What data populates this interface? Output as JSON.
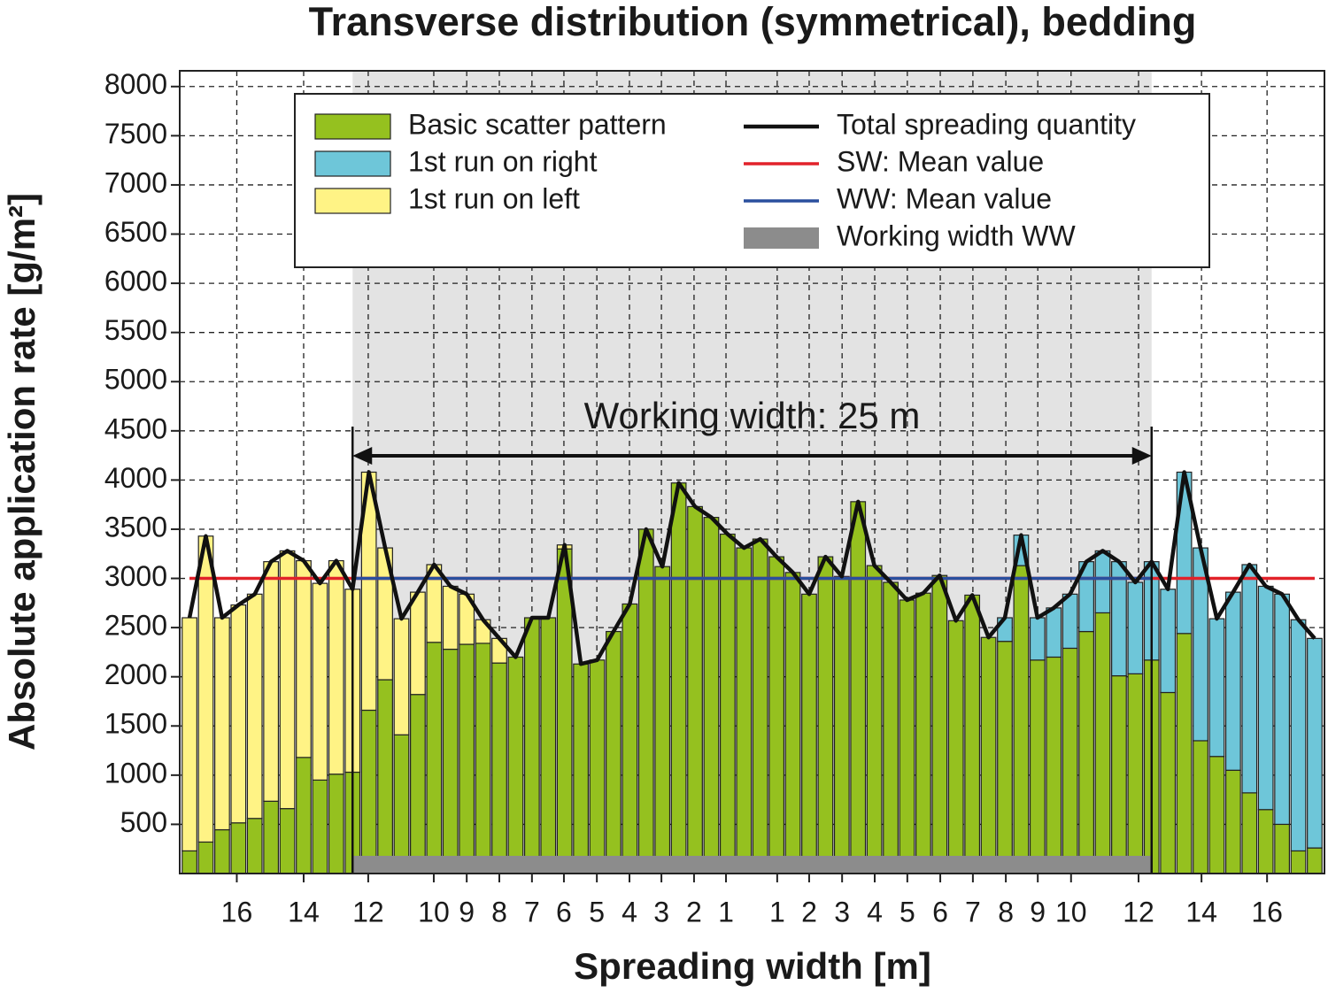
{
  "chart_data": {
    "type": "bar",
    "title": "Transverse distribution (symmetrical), bedding",
    "x_label": "Spreading width [m]",
    "y_label": "Absolute application rate [g/m²]",
    "annotation": "Working width: 25 m",
    "x": [
      -17.25,
      -16.75,
      -16.25,
      -15.75,
      -15.25,
      -14.75,
      -14.25,
      -13.75,
      -13.25,
      -12.75,
      -12.25,
      -11.75,
      -11.25,
      -10.75,
      -10.25,
      -9.75,
      -9.25,
      -8.75,
      -8.25,
      -7.75,
      -7.25,
      -6.75,
      -6.25,
      -5.75,
      -5.25,
      -4.75,
      -4.25,
      -3.75,
      -3.25,
      -2.75,
      -2.25,
      -1.75,
      -1.25,
      -0.75,
      -0.25,
      0.25,
      0.75,
      1.25,
      1.75,
      2.25,
      2.75,
      3.25,
      3.75,
      4.25,
      4.75,
      5.25,
      5.75,
      6.25,
      6.75,
      7.25,
      7.75,
      8.25,
      8.75,
      9.25,
      9.75,
      10.25,
      10.75,
      11.25,
      11.75,
      12.25,
      12.75,
      13.25,
      13.75,
      14.25,
      14.75,
      15.25,
      15.75,
      16.25,
      16.75,
      17.25
    ],
    "series": [
      {
        "name": "Basic scatter pattern",
        "color": "#95c11f",
        "values": [
          230,
          320,
          445,
          515,
          560,
          735,
          660,
          1180,
          950,
          1010,
          1030,
          1660,
          1970,
          1410,
          1820,
          2350,
          2280,
          2330,
          2340,
          2140,
          2200,
          2600,
          2600,
          3300,
          2130,
          2170,
          2460,
          2740,
          3500,
          3120,
          3970,
          3730,
          3620,
          3450,
          3310,
          3400,
          3220,
          3060,
          2840,
          3220,
          3020,
          3780,
          3130,
          2960,
          2780,
          2850,
          3030,
          2570,
          2830,
          2400,
          2360,
          3130,
          2170,
          2200,
          2290,
          2460,
          2650,
          2010,
          2030,
          2170,
          1840,
          2440,
          1350,
          1190,
          1050,
          820,
          650,
          500,
          230,
          260
        ]
      },
      {
        "name": "1st run on right",
        "color": "#6ec6d9",
        "values": [
          0,
          0,
          0,
          0,
          0,
          0,
          0,
          0,
          0,
          0,
          0,
          0,
          0,
          0,
          0,
          0,
          0,
          0,
          0,
          0,
          0,
          0,
          0,
          0,
          0,
          0,
          0,
          0,
          0,
          0,
          0,
          0,
          0,
          0,
          0,
          0,
          0,
          0,
          0,
          0,
          0,
          0,
          0,
          0,
          0,
          0,
          0,
          0,
          0,
          0,
          240,
          310,
          430,
          500,
          550,
          710,
          630,
          1160,
          930,
          1000,
          1050,
          1640,
          1960,
          1400,
          1810,
          2320,
          2270,
          2340,
          2350,
          2130
        ]
      },
      {
        "name": "1st run on left",
        "color": "#fff385",
        "values": [
          2370,
          3110,
          2155,
          2215,
          2280,
          2435,
          2620,
          2000,
          2000,
          2170,
          1860,
          2420,
          1340,
          1180,
          1040,
          790,
          640,
          510,
          240,
          250,
          0,
          0,
          0,
          40,
          0,
          0,
          0,
          0,
          0,
          0,
          0,
          0,
          0,
          0,
          0,
          0,
          0,
          0,
          0,
          0,
          0,
          0,
          0,
          0,
          0,
          0,
          0,
          0,
          0,
          0,
          0,
          0,
          0,
          0,
          0,
          0,
          0,
          0,
          0,
          0,
          0,
          0,
          0,
          0,
          0,
          0,
          0,
          0,
          0,
          0
        ]
      }
    ],
    "stack_order": [
      0,
      2,
      1
    ],
    "total": {
      "name": "Total spreading quantity",
      "color": "#111111",
      "values": [
        2600,
        3430,
        2600,
        2730,
        2840,
        3170,
        3280,
        3180,
        2950,
        3180,
        2890,
        4080,
        3310,
        2590,
        2860,
        3140,
        2920,
        2840,
        2580,
        2390,
        2200,
        2600,
        2600,
        3340,
        2130,
        2170,
        2460,
        2740,
        3500,
        3120,
        3970,
        3730,
        3620,
        3450,
        3310,
        3400,
        3220,
        3060,
        2840,
        3220,
        3020,
        3780,
        3130,
        2960,
        2780,
        2850,
        3030,
        2570,
        2830,
        2400,
        2600,
        3440,
        2600,
        2700,
        2840,
        3170,
        3280,
        3170,
        2960,
        3170,
        2890,
        4080,
        3310,
        2590,
        2860,
        3140,
        2920,
        2840,
        2580,
        2390
      ]
    },
    "sw_mean": {
      "name": "SW: Mean value",
      "color": "#e2222a",
      "value": 3000
    },
    "ww_mean": {
      "name": "WW: Mean value",
      "color": "#2a4f9e",
      "value": 3000
    },
    "working_width": {
      "name": "Working width WW",
      "color": "#8c8c8c",
      "region_color": "#e3e3e3",
      "range": [
        -12.25,
        12.25
      ]
    },
    "xlim": [
      -17.55,
      17.55
    ],
    "ylim": [
      0,
      8160
    ],
    "yticks": [
      500,
      1000,
      1500,
      2000,
      2500,
      3000,
      3500,
      4000,
      4500,
      5000,
      5500,
      6000,
      6500,
      7000,
      7500,
      8000
    ],
    "xticks": [
      {
        "value": -15.8,
        "label": "16"
      },
      {
        "value": -13.75,
        "label": "14"
      },
      {
        "value": -11.77,
        "label": "12"
      },
      {
        "value": -9.76,
        "label": "10"
      },
      {
        "value": -8.75,
        "label": "9"
      },
      {
        "value": -7.75,
        "label": "8"
      },
      {
        "value": -6.75,
        "label": "7"
      },
      {
        "value": -5.77,
        "label": "6"
      },
      {
        "value": -4.76,
        "label": "5"
      },
      {
        "value": -3.76,
        "label": "4"
      },
      {
        "value": -2.78,
        "label": "3"
      },
      {
        "value": -1.78,
        "label": "2"
      },
      {
        "value": -0.8,
        "label": "1"
      },
      {
        "value": 0.77,
        "label": "1"
      },
      {
        "value": 1.75,
        "label": "2"
      },
      {
        "value": 2.76,
        "label": "3"
      },
      {
        "value": 3.76,
        "label": "4"
      },
      {
        "value": 4.76,
        "label": "5"
      },
      {
        "value": 5.77,
        "label": "6"
      },
      {
        "value": 6.77,
        "label": "7"
      },
      {
        "value": 7.78,
        "label": "8"
      },
      {
        "value": 8.76,
        "label": "9"
      },
      {
        "value": 9.78,
        "label": "10"
      },
      {
        "value": 11.85,
        "label": "12"
      },
      {
        "value": 13.78,
        "label": "14"
      },
      {
        "value": 15.79,
        "label": "16"
      }
    ],
    "grid": true
  }
}
